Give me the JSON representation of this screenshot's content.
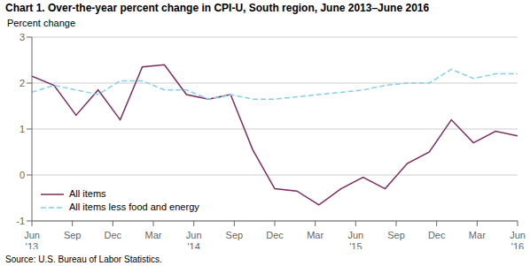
{
  "chart_data": {
    "type": "line",
    "title": "Chart 1. Over-the-year percent change in CPI-U, South region, June 2013–June 2016",
    "y_label": "Percent change",
    "source": "Source: U.S. Bureau of Labor Statistics.",
    "x": [
      0,
      1.636364,
      3.272727,
      4.909091,
      6.545455,
      8.181818,
      9.818182,
      11.454545,
      13.090909,
      14.727273,
      16.363636,
      18,
      19.636364,
      21.272727,
      22.909091,
      24.545455,
      26.181818,
      27.818182,
      29.454545,
      31.090909,
      32.727273,
      34.363636,
      36
    ],
    "series": [
      {
        "name": "All items",
        "color": "#7B2D5E",
        "line_style": "solid",
        "values": [
          2.15,
          1.95,
          1.3,
          1.85,
          1.2,
          2.35,
          2.4,
          1.75,
          1.65,
          1.75,
          0.55,
          -0.3,
          -0.35,
          -0.65,
          -0.3,
          -0.05,
          -0.3,
          0.25,
          0.5,
          1.2,
          0.7,
          0.95,
          0.85
        ]
      },
      {
        "name": "All items less food and energy",
        "color": "#87CEEB",
        "line_style": "dashed",
        "values": [
          1.8,
          1.95,
          1.85,
          1.75,
          2.05,
          2.05,
          1.85,
          1.85,
          1.65,
          1.75,
          1.65,
          1.65,
          1.7,
          1.75,
          1.8,
          1.85,
          1.95,
          2.0,
          2.0,
          2.3,
          2.1,
          2.2,
          2.2
        ]
      }
    ],
    "xlim": [
      0,
      36
    ],
    "xticks": [
      {
        "value": 0,
        "label": "Jun"
      },
      {
        "value": 3,
        "label": "Sep"
      },
      {
        "value": 6,
        "label": "Dec"
      },
      {
        "value": 9,
        "label": "Mar"
      },
      {
        "value": 12,
        "label": "Jun"
      },
      {
        "value": 15,
        "label": "Sep"
      },
      {
        "value": 18,
        "label": "Dec"
      },
      {
        "value": 21,
        "label": "Mar"
      },
      {
        "value": 24,
        "label": "Jun"
      },
      {
        "value": 27,
        "label": "Sep"
      },
      {
        "value": 30,
        "label": "Dec"
      },
      {
        "value": 33,
        "label": "Mar"
      },
      {
        "value": 36,
        "label": "Jun"
      }
    ],
    "annotations": [
      {
        "text": "'13",
        "x": 0
      },
      {
        "text": "'14",
        "x": 12
      },
      {
        "text": "'15",
        "x": 24
      },
      {
        "text": "'16",
        "x": 36
      }
    ],
    "ylim": [
      -1.0,
      3.0
    ],
    "yticks": [
      -1.0,
      0.0,
      1.0,
      2.0,
      3.0
    ],
    "grid": true,
    "legend": "lower left"
  }
}
